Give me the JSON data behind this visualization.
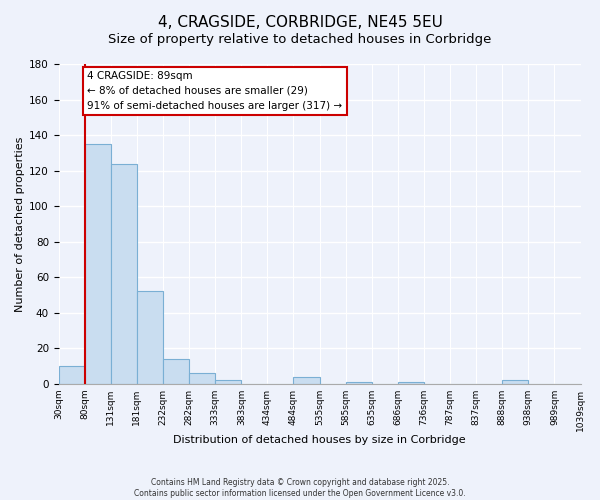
{
  "title": "4, CRAGSIDE, CORBRIDGE, NE45 5EU",
  "subtitle": "Size of property relative to detached houses in Corbridge",
  "xlabel": "Distribution of detached houses by size in Corbridge",
  "ylabel": "Number of detached properties",
  "bar_values": [
    10,
    135,
    124,
    52,
    14,
    6,
    2,
    0,
    0,
    4,
    0,
    1,
    0,
    1,
    0,
    0,
    0,
    2,
    0,
    0
  ],
  "bar_color": "#c9ddf0",
  "bar_edge_color": "#7aafd4",
  "vline_color": "#cc0000",
  "vline_position": 1,
  "ylim": [
    0,
    180
  ],
  "yticks": [
    0,
    20,
    40,
    60,
    80,
    100,
    120,
    140,
    160,
    180
  ],
  "annotation_title": "4 CRAGSIDE: 89sqm",
  "annotation_line1": "← 8% of detached houses are smaller (29)",
  "annotation_line2": "91% of semi-detached houses are larger (317) →",
  "annotation_box_color": "#ffffff",
  "annotation_box_edge": "#cc0000",
  "footer1": "Contains HM Land Registry data © Crown copyright and database right 2025.",
  "footer2": "Contains public sector information licensed under the Open Government Licence v3.0.",
  "background_color": "#eef2fb",
  "plot_background": "#eef2fb",
  "title_fontsize": 11,
  "subtitle_fontsize": 9.5,
  "tick_labels": [
    "30sqm",
    "80sqm",
    "131sqm",
    "181sqm",
    "232sqm",
    "282sqm",
    "333sqm",
    "383sqm",
    "434sqm",
    "484sqm",
    "535sqm",
    "585sqm",
    "635sqm",
    "686sqm",
    "736sqm",
    "787sqm",
    "837sqm",
    "888sqm",
    "938sqm",
    "989sqm",
    "1039sqm"
  ],
  "grid_color": "#ffffff",
  "annotation_fontsize": 7.5,
  "xlabel_fontsize": 8,
  "ylabel_fontsize": 8
}
